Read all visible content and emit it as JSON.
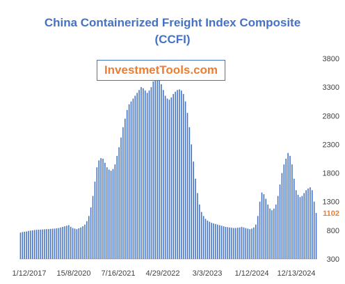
{
  "chart_data": {
    "type": "bar",
    "title": "China Containerized Freight Index Composite",
    "subtitle": "(CCFI)",
    "watermark": "InvestmetTools.com",
    "y_axis_side": "right",
    "ylim": [
      300,
      3800
    ],
    "yticks": [
      300,
      800,
      1300,
      1800,
      2300,
      2800,
      3300,
      3800
    ],
    "x_tick_labels": [
      "1/12/2017",
      "15/8/2020",
      "7/16/2021",
      "4/29/2022",
      "3/3/2023",
      "1/12/2024",
      "12/13/2024"
    ],
    "last_value_label": "1102",
    "colors": {
      "bars": "#4472c4",
      "title": "#4472c4",
      "watermark": "#ed7d31",
      "last_value": "#ed7d31"
    },
    "values": [
      760,
      770,
      775,
      780,
      790,
      795,
      800,
      805,
      808,
      810,
      812,
      815,
      818,
      820,
      822,
      825,
      828,
      830,
      835,
      840,
      850,
      860,
      870,
      880,
      890,
      860,
      840,
      830,
      820,
      835,
      850,
      870,
      900,
      960,
      1050,
      1200,
      1400,
      1650,
      1900,
      2020,
      2060,
      2050,
      1980,
      1900,
      1860,
      1840,
      1870,
      1950,
      2100,
      2250,
      2420,
      2600,
      2750,
      2900,
      3000,
      3050,
      3100,
      3150,
      3200,
      3250,
      3300,
      3280,
      3240,
      3200,
      3240,
      3300,
      3400,
      3500,
      3520,
      3450,
      3350,
      3250,
      3150,
      3100,
      3080,
      3120,
      3180,
      3220,
      3250,
      3260,
      3240,
      3180,
      3050,
      2850,
      2600,
      2300,
      2000,
      1700,
      1450,
      1250,
      1120,
      1050,
      1000,
      970,
      950,
      930,
      920,
      910,
      900,
      890,
      880,
      870,
      860,
      855,
      850,
      845,
      840,
      840,
      845,
      850,
      860,
      850,
      840,
      830,
      820,
      830,
      850,
      900,
      1050,
      1300,
      1460,
      1430,
      1350,
      1250,
      1180,
      1150,
      1180,
      1250,
      1400,
      1600,
      1800,
      1950,
      2050,
      2150,
      2100,
      1950,
      1700,
      1500,
      1420,
      1380,
      1400,
      1450,
      1500,
      1530,
      1550,
      1500,
      1300,
      1102
    ]
  }
}
